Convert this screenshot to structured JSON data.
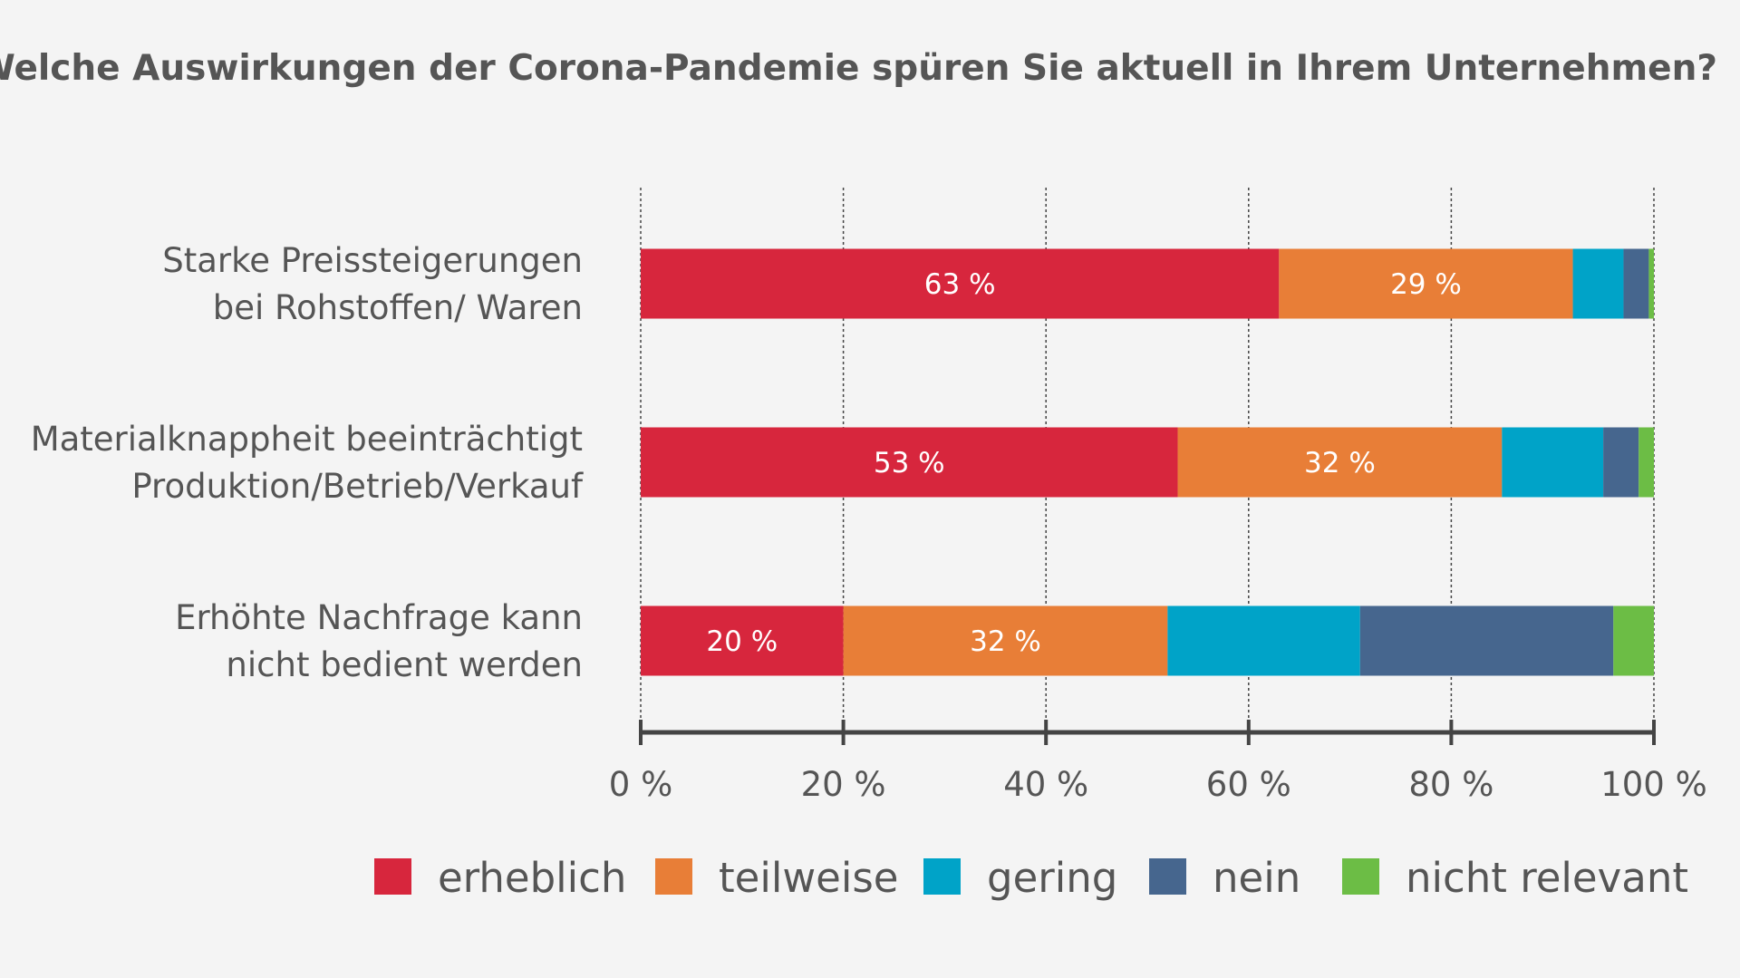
{
  "chart_data": {
    "type": "bar",
    "orientation": "horizontal",
    "stacked": true,
    "title": "Welche Auswirkungen der Corona-Pandemie spüren Sie aktuell in Ihrem Unternehmen?",
    "categories": [
      [
        "Starke Preissteigerungen",
        "bei Rohstoffen/ Waren"
      ],
      [
        "Materialknappheit beeinträchtigt",
        "Produktion/Betrieb/Verkauf"
      ],
      [
        "Erhöhte Nachfrage kann",
        "nicht bedient werden"
      ]
    ],
    "series": [
      {
        "name": "erheblich",
        "color": "#d7263d",
        "values": [
          63,
          53,
          20
        ],
        "labels": [
          "63 %",
          "53 %",
          "20 %"
        ]
      },
      {
        "name": "teilweise",
        "color": "#e87e37",
        "values": [
          29,
          32,
          32
        ],
        "labels": [
          "29 %",
          "32 %",
          "32 %"
        ]
      },
      {
        "name": "gering",
        "color": "#00a3c8",
        "values": [
          5,
          10,
          19
        ],
        "labels": [
          "",
          "",
          ""
        ]
      },
      {
        "name": "nein",
        "color": "#46668e",
        "values": [
          2.5,
          3.5,
          25
        ],
        "labels": [
          "",
          "",
          ""
        ]
      },
      {
        "name": "nicht relevant",
        "color": "#6cbd45",
        "values": [
          0.5,
          1.5,
          4
        ],
        "labels": [
          "",
          "",
          ""
        ]
      }
    ],
    "xlim": [
      0,
      100
    ],
    "xticks": [
      "0 %",
      "20 %",
      "40 %",
      "60 %",
      "80 %",
      "100 %"
    ],
    "grid": true,
    "legend_position": "bottom"
  }
}
